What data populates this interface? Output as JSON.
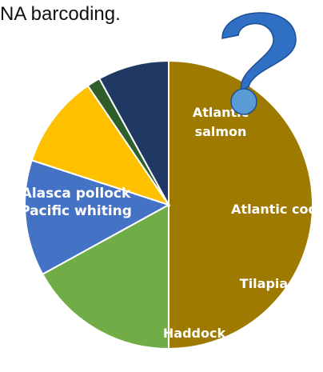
{
  "caption": "NA barcoding.",
  "decoration": {
    "icon": "question-mark-icon",
    "color": "#2f6fc4"
  },
  "chart_data": {
    "type": "pie",
    "title": "",
    "slices": [
      {
        "label": "Alasca pollock Pacific whiting",
        "lines": [
          "Alasca pollock",
          "Pacific whiting"
        ],
        "value": 50,
        "color": "#9e7a00"
      },
      {
        "label": "Atlantic salmon",
        "lines": [
          "Atlantic",
          "salmon"
        ],
        "value": 17,
        "color": "#70ad47"
      },
      {
        "label": "Atlantic cod",
        "lines": [
          "Atlantic cod"
        ],
        "value": 13,
        "color": "#4472c4"
      },
      {
        "label": "Tilapia",
        "lines": [
          "Tilapia"
        ],
        "value": 10.5,
        "color": "#ffc000"
      },
      {
        "label": "",
        "lines": [],
        "value": 1.5,
        "color": "#2f5e2a"
      },
      {
        "label": "Haddock",
        "lines": [
          "Haddock"
        ],
        "value": 8,
        "color": "#203864"
      }
    ]
  }
}
